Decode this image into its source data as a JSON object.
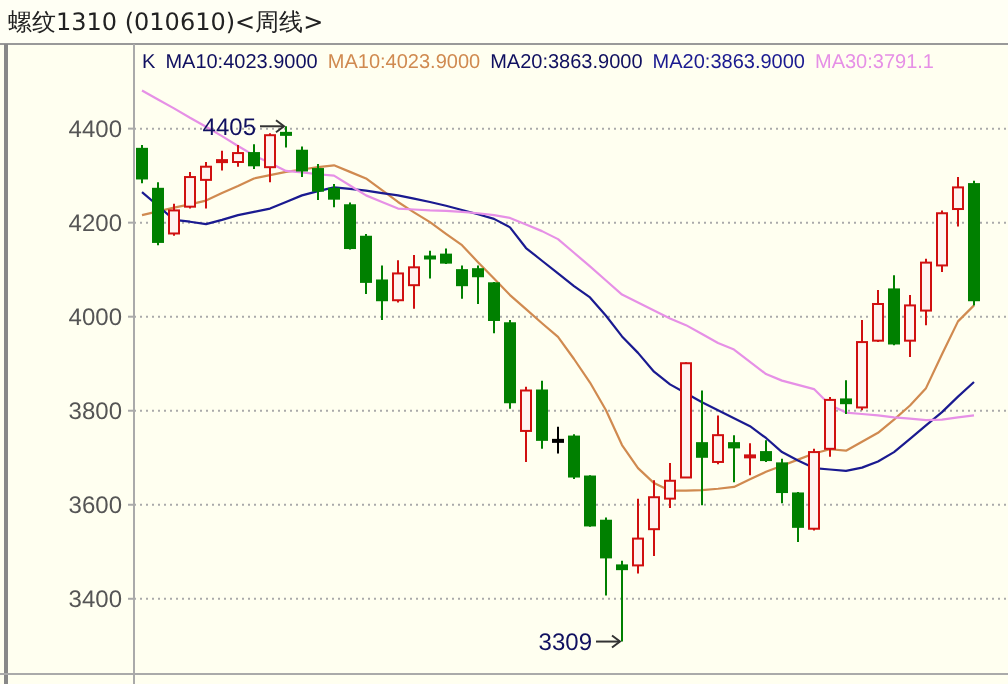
{
  "chart_data": {
    "type": "candlestick",
    "title": "螺纹1310 (010610)<周线>",
    "categories": [
      null,
      null,
      null,
      null,
      null,
      null,
      null,
      null,
      null,
      null,
      null,
      null,
      null,
      null,
      null,
      null,
      null,
      null,
      null,
      null,
      null,
      null,
      null,
      null,
      null,
      null,
      null,
      null,
      null,
      null,
      null,
      null,
      null,
      null,
      null,
      null,
      null,
      null,
      null,
      null,
      null,
      null,
      null,
      null,
      null,
      null,
      null,
      null,
      null,
      null,
      null,
      null,
      null
    ],
    "ohlc": [
      [
        4357,
        4365,
        4284,
        4294
      ],
      [
        4272,
        4286,
        4152,
        4159
      ],
      [
        4177,
        4240,
        4172,
        4226
      ],
      [
        4234,
        4308,
        4230,
        4297
      ],
      [
        4291,
        4329,
        4230,
        4319
      ],
      [
        4331,
        4353,
        4311,
        4333
      ],
      [
        4329,
        4365,
        4319,
        4348
      ],
      [
        4348,
        4367,
        4314,
        4322
      ],
      [
        4318,
        4390,
        4286,
        4386
      ],
      [
        4391,
        4405,
        4360,
        4388
      ],
      [
        4353,
        4362,
        4297,
        4311
      ],
      [
        4314,
        4325,
        4248,
        4268
      ],
      [
        4272,
        4282,
        4233,
        4251
      ],
      [
        4237,
        4243,
        4143,
        4146
      ],
      [
        4170,
        4176,
        4048,
        4074
      ],
      [
        4077,
        4109,
        3993,
        4035
      ],
      [
        4035,
        4120,
        4030,
        4092
      ],
      [
        4067,
        4131,
        4017,
        4105
      ],
      [
        4128,
        4140,
        4081,
        4124
      ],
      [
        4132,
        4145,
        4112,
        4115
      ],
      [
        4099,
        4109,
        4038,
        4067
      ],
      [
        4101,
        4109,
        4027,
        4086
      ],
      [
        4071,
        4074,
        3965,
        3993
      ],
      [
        3986,
        3993,
        3804,
        3818
      ],
      [
        3757,
        3851,
        3691,
        3843
      ],
      [
        3843,
        3864,
        3719,
        3738
      ],
      [
        3738,
        3766,
        3709,
        3738
      ],
      [
        3745,
        3750,
        3655,
        3660
      ],
      [
        3660,
        3663,
        3553,
        3556
      ],
      [
        3566,
        3573,
        3407,
        3488
      ],
      [
        3471,
        3481,
        3309,
        3463
      ],
      [
        3471,
        3613,
        3454,
        3528
      ],
      [
        3548,
        3652,
        3491,
        3616
      ],
      [
        3613,
        3689,
        3593,
        3651
      ],
      [
        3658,
        3903,
        3658,
        3901
      ],
      [
        3731,
        3843,
        3599,
        3702
      ],
      [
        3691,
        3790,
        3686,
        3748
      ],
      [
        3731,
        3748,
        3648,
        3722
      ],
      [
        3703,
        3731,
        3663,
        3705
      ],
      [
        3712,
        3737,
        3691,
        3695
      ],
      [
        3688,
        3698,
        3603,
        3627
      ],
      [
        3624,
        3627,
        3521,
        3553
      ],
      [
        3549,
        3719,
        3545,
        3712
      ],
      [
        3719,
        3829,
        3702,
        3823
      ],
      [
        3824,
        3865,
        3793,
        3816
      ],
      [
        3807,
        3993,
        3801,
        3946
      ],
      [
        3949,
        4057,
        3946,
        4027
      ],
      [
        4058,
        4088,
        3939,
        3943
      ],
      [
        3949,
        4046,
        3914,
        4024
      ],
      [
        4013,
        4123,
        3982,
        4115
      ],
      [
        4109,
        4226,
        4095,
        4220
      ],
      [
        4229,
        4297,
        4192,
        4275
      ],
      [
        4282,
        4289,
        4024,
        4035
      ]
    ],
    "series": [
      {
        "type": "line",
        "name": "MA10:4023.9000",
        "color": "#d08a50",
        "values": [
          4216,
          4224,
          4232,
          4239,
          4247,
          4263,
          4278,
          4294,
          4301,
          4308,
          4313,
          4318,
          4322,
          4308,
          4294,
          4269,
          4244,
          4222,
          4201,
          4176,
          4152,
          4116,
          4081,
          4046,
          4016,
          3986,
          3957,
          3910,
          3860,
          3801,
          3727,
          3678,
          3646,
          3630,
          3630,
          3631,
          3634,
          3638,
          3654,
          3670,
          3683,
          3696,
          3709,
          3718,
          3715,
          3734,
          3753,
          3781,
          3811,
          3848,
          3920,
          3990,
          4024
        ]
      },
      {
        "type": "line",
        "name": "MA20:3863.9000",
        "color": "#1a1a90",
        "values": [
          4265,
          4236,
          4206,
          4202,
          4197,
          4206,
          4216,
          4223,
          4230,
          4244,
          4258,
          4267,
          4275,
          4272,
          4268,
          4263,
          4258,
          4251,
          4244,
          4236,
          4227,
          4218,
          4208,
          4190,
          4146,
          4119,
          4092,
          4065,
          4041,
          4002,
          3958,
          3923,
          3883,
          3856,
          3837,
          3818,
          3801,
          3784,
          3767,
          3742,
          3712,
          3694,
          3678,
          3675,
          3672,
          3679,
          3692,
          3712,
          3740,
          3769,
          3797,
          3830,
          3861
        ]
      },
      {
        "type": "line",
        "name": "MA30:3791.1",
        "color": "#e690e6",
        "values": [
          4481,
          4462,
          4443,
          4423,
          4404,
          4384,
          4363,
          4343,
          4327,
          4310,
          4307,
          4303,
          4300,
          4279,
          4258,
          4244,
          4230,
          4228,
          4226,
          4225,
          4223,
          4220,
          4216,
          4210,
          4196,
          4182,
          4165,
          4136,
          4107,
          4077,
          4047,
          4030,
          4013,
          3996,
          3982,
          3963,
          3944,
          3930,
          3904,
          3878,
          3864,
          3855,
          3846,
          3812,
          3796,
          3793,
          3790,
          3786,
          3783,
          3780,
          3781,
          3786,
          3790
        ]
      }
    ],
    "annotations": [
      "K",
      "MA10:4023.9000",
      "MA20:3863.9000",
      "4405",
      "3309"
    ],
    "ylim": [
      3240,
      4580
    ],
    "yticks": [
      3400,
      3600,
      3800,
      4000,
      4200,
      4400
    ],
    "grid": "y",
    "legend": "top",
    "tick_labels": "y",
    "marker": "none",
    "line_style": "solid"
  }
}
